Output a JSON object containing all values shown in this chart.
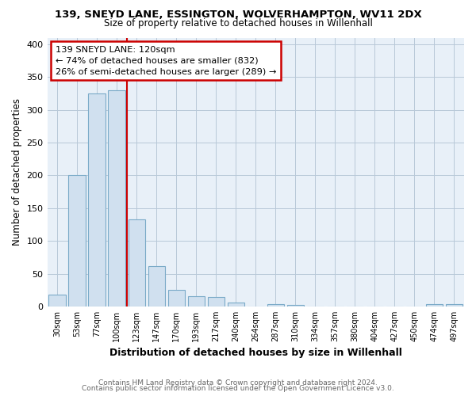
{
  "title": "139, SNEYD LANE, ESSINGTON, WOLVERHAMPTON, WV11 2DX",
  "subtitle": "Size of property relative to detached houses in Willenhall",
  "xlabel": "Distribution of detached houses by size in Willenhall",
  "ylabel": "Number of detached properties",
  "bar_labels": [
    "30sqm",
    "53sqm",
    "77sqm",
    "100sqm",
    "123sqm",
    "147sqm",
    "170sqm",
    "193sqm",
    "217sqm",
    "240sqm",
    "264sqm",
    "287sqm",
    "310sqm",
    "334sqm",
    "357sqm",
    "380sqm",
    "404sqm",
    "427sqm",
    "450sqm",
    "474sqm",
    "497sqm"
  ],
  "bar_values": [
    18,
    200,
    325,
    330,
    133,
    62,
    25,
    16,
    15,
    6,
    0,
    4,
    2,
    0,
    0,
    0,
    0,
    0,
    0,
    4,
    4
  ],
  "bar_color": "#d0e0ef",
  "bar_edge_color": "#7aaac8",
  "vline_x": 3.5,
  "vline_color": "#cc0000",
  "annotation_title": "139 SNEYD LANE: 120sqm",
  "annotation_line1": "← 74% of detached houses are smaller (832)",
  "annotation_line2": "26% of semi-detached houses are larger (289) →",
  "annotation_box_color": "#ffffff",
  "annotation_box_edge": "#cc0000",
  "ylim": [
    0,
    410
  ],
  "footer1": "Contains HM Land Registry data © Crown copyright and database right 2024.",
  "footer2": "Contains public sector information licensed under the Open Government Licence v3.0.",
  "bg_color": "#ffffff",
  "plot_bg_color": "#e8f0f8",
  "grid_color": "#b8c8d8"
}
